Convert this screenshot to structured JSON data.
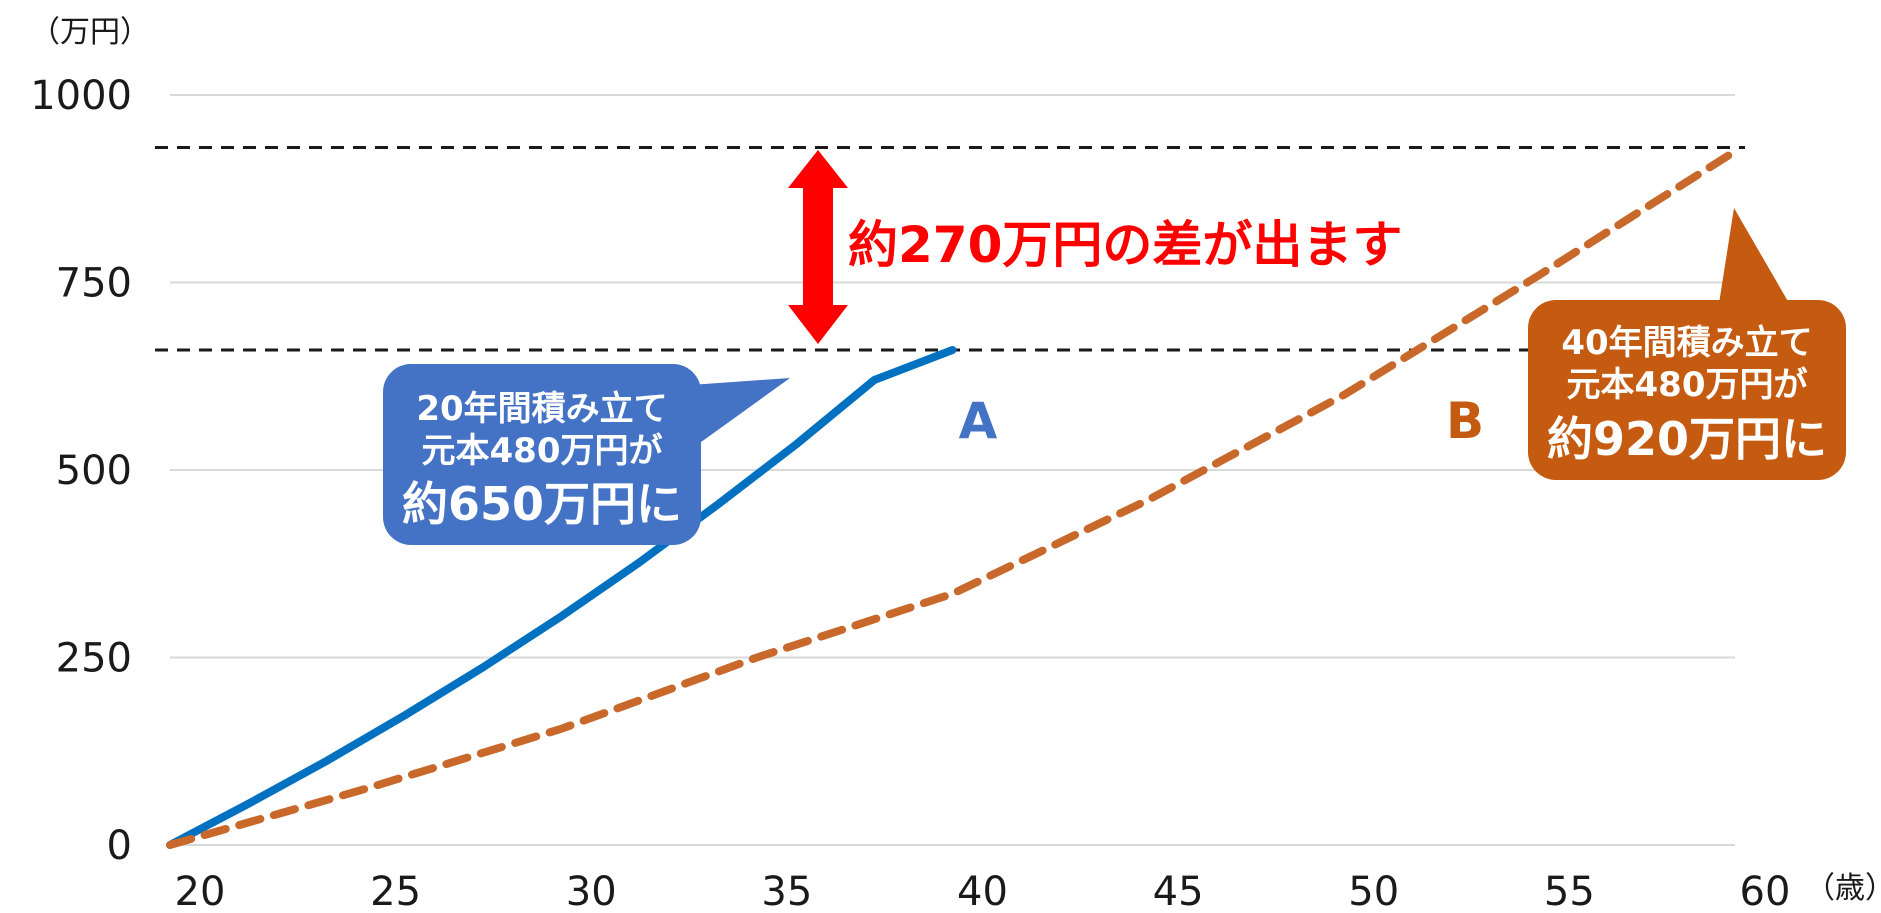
{
  "chart_data": {
    "type": "line",
    "y_unit": "（万円）",
    "x_unit": "（歳）",
    "xlim": [
      20,
      60
    ],
    "ylim": [
      0,
      1000
    ],
    "x_ticks": [
      "20",
      "25",
      "30",
      "35",
      "40",
      "45",
      "50",
      "55",
      "60"
    ],
    "y_ticks": [
      "0",
      "250",
      "500",
      "750",
      "1000"
    ],
    "grid": true,
    "series": [
      {
        "name": "A",
        "color": "#0070c0",
        "style": "solid",
        "x": [
          20,
          22,
          24,
          26,
          28,
          30,
          32,
          34,
          36,
          38,
          40
        ],
        "y": [
          0,
          55,
          112,
          173,
          237,
          305,
          377,
          454,
          534,
          620,
          660
        ]
      },
      {
        "name": "B",
        "color": "#c8692b",
        "style": "dashed",
        "x": [
          20,
          25,
          30,
          35,
          40,
          45,
          50,
          55,
          60
        ],
        "y": [
          0,
          75,
          155,
          250,
          335,
          460,
          600,
          760,
          925
        ]
      }
    ],
    "reference_lines": [
      {
        "y": 930,
        "style": "dashed"
      },
      {
        "y": 660,
        "style": "dashed"
      }
    ],
    "annotations": {
      "difference_text": "約270万円の差が出ます",
      "callout_a": {
        "line1": "20年間積み立て",
        "line2": "元本480万円が",
        "line3": "約650万円に",
        "color": "#4472c4"
      },
      "callout_b": {
        "line1": "40年間積み立て",
        "line2": "元本480万円が",
        "line3": "約920万円に",
        "color": "#c55a11"
      }
    }
  }
}
